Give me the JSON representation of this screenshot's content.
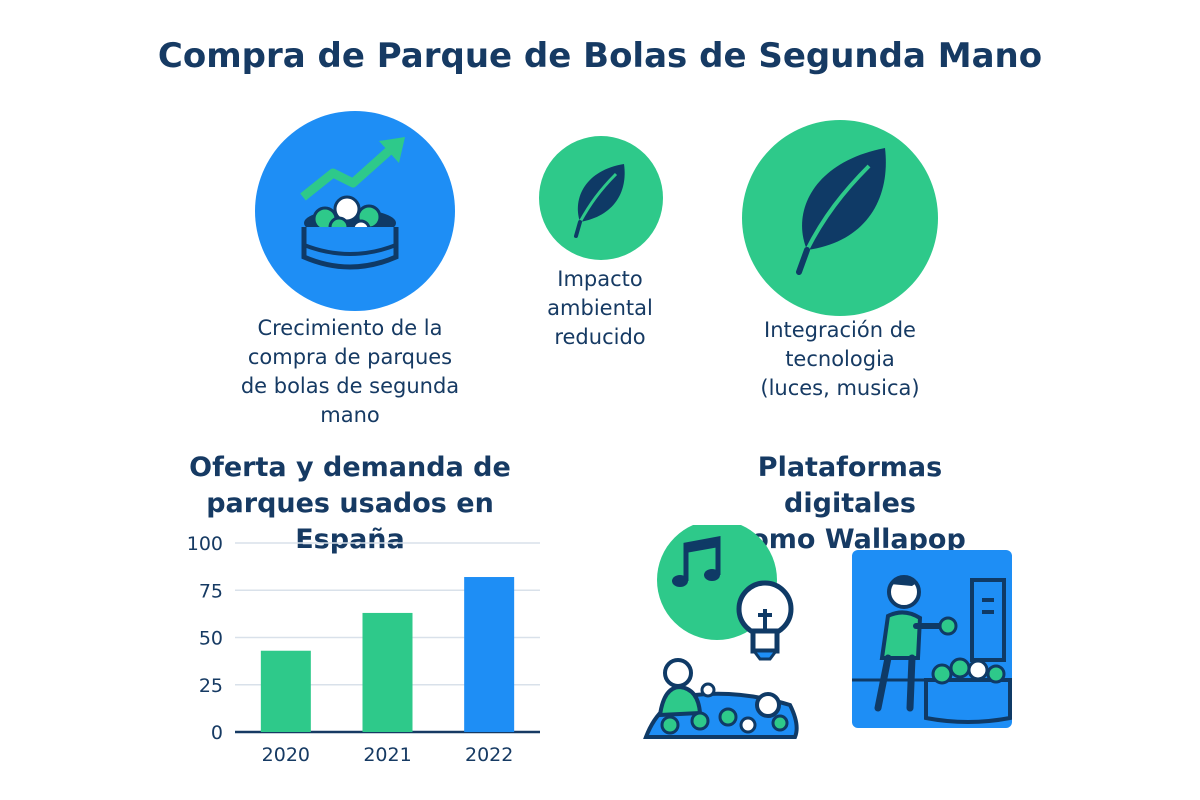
{
  "title": "Compra de Parque de Bolas de Segunda Mano",
  "features": [
    {
      "label": "Crecimiento de la compra de parques de bolas de segunda mano",
      "icon": "ball-pit-growth-icon"
    },
    {
      "label": "Impacto ambiental reducido",
      "icon": "leaf-icon"
    },
    {
      "label": "Integración de tecnologia (luces, musica)",
      "icon": "leaf-icon"
    }
  ],
  "labels_lines": {
    "f0": [
      "Crecimiento de la",
      "compra de parques",
      "de bolas de segunda",
      "mano"
    ],
    "f1": [
      "Impacto",
      "ambiental",
      "reducido"
    ],
    "f2": [
      "Integración de",
      "tecnologia",
      "(luces, musica)"
    ]
  },
  "chart_section": {
    "title_lines": [
      "Oferta y demanda de",
      "parques usados en España"
    ]
  },
  "platforms_section": {
    "title_lines": [
      "Plataformas digitales",
      "como Wallapop"
    ]
  },
  "colors": {
    "blue": "#1e8ef5",
    "green": "#2ec98a",
    "navy": "#0f3a66"
  },
  "chart_data": {
    "type": "bar",
    "title": "Oferta y demanda de parques usados en España",
    "categories": [
      "2020",
      "2021",
      "2022"
    ],
    "values": [
      43,
      63,
      82
    ],
    "bar_colors": [
      "#2ec98a",
      "#2ec98a",
      "#1e8ef5"
    ],
    "ylim": [
      0,
      100
    ],
    "yticks": [
      0,
      25,
      50,
      75,
      100
    ],
    "grid": true
  }
}
